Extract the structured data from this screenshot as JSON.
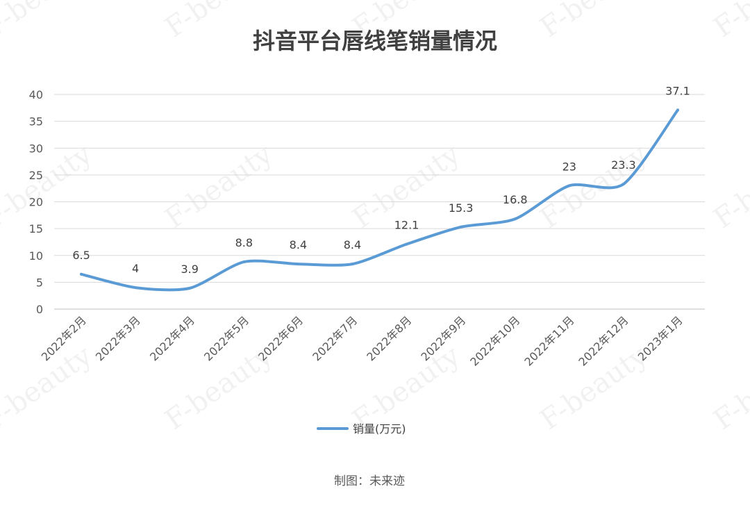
{
  "watermark": "F-beauty",
  "credit": "制图：未来迹",
  "chart_data": {
    "type": "line",
    "title": "抖音平台唇线笔销量情况",
    "categories": [
      "2022年2月",
      "2022年3月",
      "2022年4月",
      "2022年5月",
      "2022年6月",
      "2022年7月",
      "2022年8月",
      "2022年9月",
      "2022年10月",
      "2022年11月",
      "2022年12月",
      "2023年1月"
    ],
    "series": [
      {
        "name": "销量(万元)",
        "values": [
          6.5,
          4,
          3.9,
          8.8,
          8.4,
          8.4,
          12.1,
          15.3,
          16.8,
          23,
          23.3,
          37.1
        ],
        "color": "#5B9BD5",
        "data_labels": [
          "6.5",
          "4",
          "3.9",
          "8.8",
          "8.4",
          "8.4",
          "12.1",
          "15.3",
          "16.8",
          "23",
          "23.3",
          "37.1"
        ]
      }
    ],
    "ylim": [
      0,
      40
    ],
    "yticks": [
      0,
      5,
      10,
      15,
      20,
      25,
      30,
      35,
      40
    ],
    "grid": true,
    "legend": "bottom"
  }
}
